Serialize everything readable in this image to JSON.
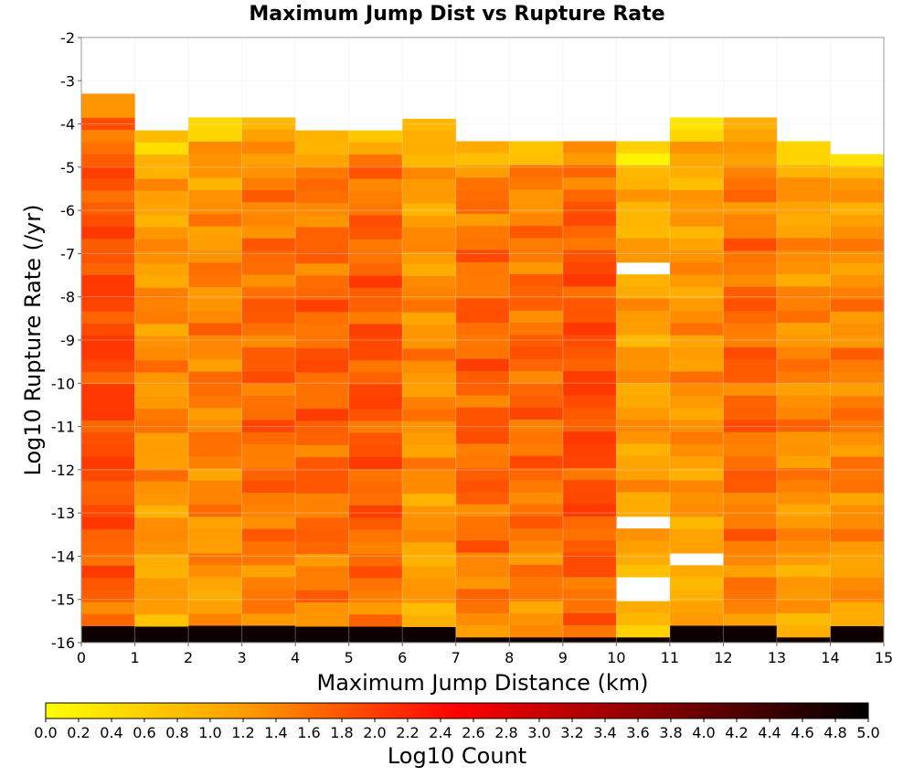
{
  "chart_data": {
    "type": "heatmap",
    "title": "Maximum Jump Dist vs Rupture Rate",
    "xlabel": "Maximum Jump Distance (km)",
    "ylabel": "Log10 Rupture Rate (/yr)",
    "colorbar_label": "Log10 Count",
    "xlim": [
      0,
      15
    ],
    "ylim": [
      -16,
      -2
    ],
    "x_ticks": [
      "0",
      "1",
      "2",
      "3",
      "4",
      "5",
      "6",
      "7",
      "8",
      "9",
      "10",
      "11",
      "12",
      "13",
      "14",
      "15"
    ],
    "y_ticks": [
      "-2",
      "-3",
      "-4",
      "-5",
      "-6",
      "-7",
      "-8",
      "-9",
      "-10",
      "-11",
      "-12",
      "-13",
      "-14",
      "-15",
      "-16"
    ],
    "colorbar_ticks": [
      "0.0",
      "0.2",
      "0.4",
      "0.6",
      "0.8",
      "1.0",
      "1.2",
      "1.4",
      "1.6",
      "1.8",
      "2.0",
      "2.2",
      "2.4",
      "2.6",
      "2.8",
      "3.0",
      "3.2",
      "3.4",
      "3.6",
      "3.8",
      "4.0",
      "4.2",
      "4.4",
      "4.6",
      "4.8",
      "5.0"
    ],
    "colorbar_range": [
      0,
      5
    ],
    "colormap": [
      "#ffff00",
      "#ff9900",
      "#ff0000",
      "#800000",
      "#000000"
    ],
    "grid": true,
    "bin_width_x": 1,
    "bin_height_y": 0.28,
    "bottom_row_value": 4.85,
    "profiles": [
      {
        "top": -3.3,
        "base": 1.6
      },
      {
        "top": -4.15,
        "base": 1.0
      },
      {
        "top": -3.85,
        "base": 1.1
      },
      {
        "top": -3.85,
        "base": 1.3
      },
      {
        "top": -4.15,
        "base": 1.35
      },
      {
        "top": -4.15,
        "base": 1.45
      },
      {
        "top": -3.6,
        "base": 1.0
      },
      {
        "top": -4.4,
        "base": 1.35
      },
      {
        "top": -4.4,
        "base": 1.3
      },
      {
        "top": -4.4,
        "base": 1.55
      },
      {
        "top": -4.4,
        "base": 0.85
      },
      {
        "top": -3.85,
        "base": 0.95
      },
      {
        "top": -3.85,
        "base": 1.3
      },
      {
        "top": -4.4,
        "base": 1.05
      },
      {
        "top": -4.7,
        "base": 1.1
      }
    ],
    "empty_cells": [
      {
        "col": 6,
        "y": -3.85
      },
      {
        "col": 10,
        "y": -7.45
      },
      {
        "col": 10,
        "y": -13.15
      },
      {
        "col": 10,
        "y": -14.5
      },
      {
        "col": 10,
        "y": -14.8
      },
      {
        "col": 11,
        "y": -14.0
      }
    ]
  }
}
